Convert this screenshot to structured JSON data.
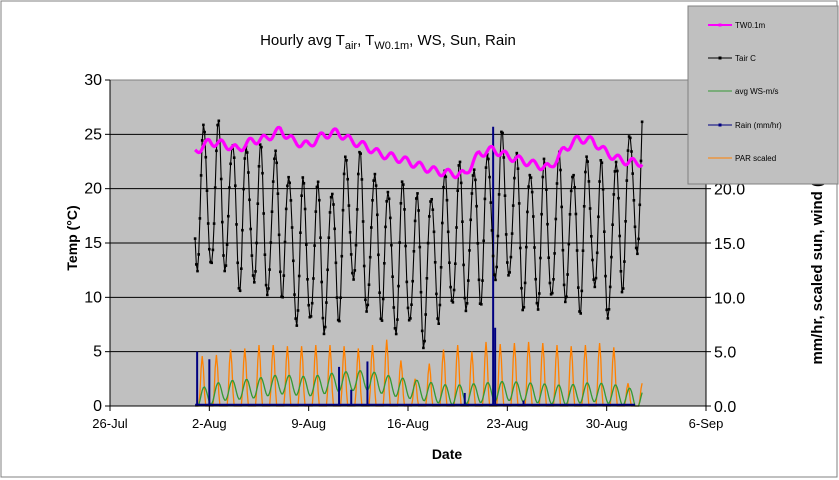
{
  "chart_data": {
    "type": "line",
    "title": "Hourly avg T",
    "title_sub1": "air",
    "title_mid1": ", T",
    "title_sub2": "W0.1m",
    "title_tail": ", WS, Sun, Rain",
    "xlabel": "Date",
    "ylabel": "Temp (°C)",
    "y2label": "mm/hr, scaled sun, wind (",
    "x_tick_labels": [
      "26-Jul",
      "2-Aug",
      "9-Aug",
      "16-Aug",
      "23-Aug",
      "30-Aug",
      "6-Sep"
    ],
    "xlim": [
      "2007-07-26",
      "2007-09-06"
    ],
    "y_tick_labels": [
      "0",
      "5",
      "10",
      "15",
      "20",
      "25",
      "30"
    ],
    "ylim": [
      0,
      30
    ],
    "y2_tick_labels": [
      "0.0",
      "5.0",
      "10.0",
      "15.0",
      "20.0"
    ],
    "y2lim": [
      0,
      30
    ],
    "plot_background": "#c0c0c0",
    "legend_position": "top-right",
    "series": [
      {
        "name": "TW0.1m",
        "color": "#ff00ff",
        "style": "thick line",
        "values": [
          [
            "2007-08-01",
            23.4
          ],
          [
            "2007-08-02",
            24.3
          ],
          [
            "2007-08-03",
            24.1
          ],
          [
            "2007-08-04",
            23.6
          ],
          [
            "2007-08-05",
            24.4
          ],
          [
            "2007-08-06",
            24.6
          ],
          [
            "2007-08-07",
            25.4
          ],
          [
            "2007-08-08",
            24.3
          ],
          [
            "2007-08-09",
            24.0
          ],
          [
            "2007-08-10",
            24.9
          ],
          [
            "2007-08-11",
            25.2
          ],
          [
            "2007-08-12",
            24.4
          ],
          [
            "2007-08-13",
            23.9
          ],
          [
            "2007-08-14",
            23.2
          ],
          [
            "2007-08-15",
            22.9
          ],
          [
            "2007-08-16",
            22.5
          ],
          [
            "2007-08-17",
            22.0
          ],
          [
            "2007-08-18",
            21.6
          ],
          [
            "2007-08-19",
            21.4
          ],
          [
            "2007-08-20",
            21.3
          ],
          [
            "2007-08-21",
            23.2
          ],
          [
            "2007-08-22",
            23.6
          ],
          [
            "2007-08-23",
            23.0
          ],
          [
            "2007-08-24",
            22.6
          ],
          [
            "2007-08-25",
            22.2
          ],
          [
            "2007-08-26",
            21.9
          ],
          [
            "2007-08-27",
            23.6
          ],
          [
            "2007-08-28",
            24.6
          ],
          [
            "2007-08-29",
            24.4
          ],
          [
            "2007-08-30",
            23.3
          ],
          [
            "2007-08-31",
            22.6
          ],
          [
            "2007-09-01",
            22.4
          ]
        ]
      },
      {
        "name": "Tair C",
        "color": "#000000",
        "style": "line with small markers",
        "values": [
          [
            "2007-08-01",
            20.0
          ],
          [
            "2007-08-02",
            18.0
          ],
          [
            "2007-08-03",
            19.0
          ],
          [
            "2007-08-04",
            18.5
          ],
          [
            "2007-08-05",
            17.5
          ],
          [
            "2007-08-06",
            15.5
          ],
          [
            "2007-08-07",
            18.0
          ],
          [
            "2007-08-08",
            14.5
          ],
          [
            "2007-08-09",
            13.0
          ],
          [
            "2007-08-10",
            13.5
          ],
          [
            "2007-08-11",
            15.0
          ],
          [
            "2007-08-12",
            17.5
          ],
          [
            "2007-08-13",
            14.5
          ],
          [
            "2007-08-14",
            16.0
          ],
          [
            "2007-08-15",
            13.0
          ],
          [
            "2007-08-16",
            13.0
          ],
          [
            "2007-08-17",
            12.5
          ],
          [
            "2007-08-18",
            15.0
          ],
          [
            "2007-08-19",
            14.5
          ],
          [
            "2007-08-20",
            15.0
          ],
          [
            "2007-08-21",
            17.0
          ],
          [
            "2007-08-22",
            17.5
          ],
          [
            "2007-08-23",
            17.5
          ],
          [
            "2007-08-24",
            16.5
          ],
          [
            "2007-08-25",
            16.0
          ],
          [
            "2007-08-26",
            15.0
          ],
          [
            "2007-08-27",
            16.5
          ],
          [
            "2007-08-28",
            16.0
          ],
          [
            "2007-08-29",
            17.0
          ],
          [
            "2007-08-30",
            13.5
          ],
          [
            "2007-08-31",
            18.0
          ],
          [
            "2007-09-01",
            20.5
          ]
        ]
      },
      {
        "name": "avg WS-m/s",
        "color": "#339933",
        "style": "line",
        "values": [
          [
            "2007-08-01",
            0.6
          ],
          [
            "2007-08-03",
            1.4
          ],
          [
            "2007-08-05",
            1.6
          ],
          [
            "2007-08-07",
            2.0
          ],
          [
            "2007-08-09",
            1.8
          ],
          [
            "2007-08-11",
            2.2
          ],
          [
            "2007-08-13",
            2.4
          ],
          [
            "2007-08-15",
            1.8
          ],
          [
            "2007-08-17",
            1.4
          ],
          [
            "2007-08-19",
            1.0
          ],
          [
            "2007-08-21",
            1.2
          ],
          [
            "2007-08-23",
            1.4
          ],
          [
            "2007-08-25",
            1.2
          ],
          [
            "2007-08-27",
            1.0
          ],
          [
            "2007-08-29",
            1.3
          ],
          [
            "2007-08-31",
            1.0
          ],
          [
            "2007-09-01",
            0.6
          ]
        ]
      },
      {
        "name": "Rain (mm/hr)",
        "color": "#000080",
        "style": "line with markers",
        "values": [
          [
            "2007-08-01",
            0.0
          ],
          [
            "2007-08-01",
            5.0
          ],
          [
            "2007-08-02",
            4.3
          ],
          [
            "2007-08-11",
            3.6
          ],
          [
            "2007-08-12",
            1.5
          ],
          [
            "2007-08-13",
            4.1
          ],
          [
            "2007-08-20",
            1.2
          ],
          [
            "2007-08-22",
            7.2
          ],
          [
            "2007-08-22",
            25.7
          ],
          [
            "2007-08-24",
            0.5
          ],
          [
            "2007-09-01",
            0.0
          ]
        ]
      },
      {
        "name": "PAR scaled",
        "color": "#ff8000",
        "style": "line",
        "peak_values": [
          4.6,
          4.7,
          5.2,
          5.3,
          5.6,
          5.6,
          5.5,
          5.5,
          5.6,
          5.6,
          5.5,
          5.3,
          5.6,
          6.1,
          4.2,
          2.5,
          3.9,
          5.2,
          5.6,
          5.0,
          5.9,
          5.7,
          5.8,
          5.9,
          5.8,
          5.6,
          5.5,
          5.6,
          5.8,
          5.4,
          2.1
        ]
      }
    ]
  }
}
